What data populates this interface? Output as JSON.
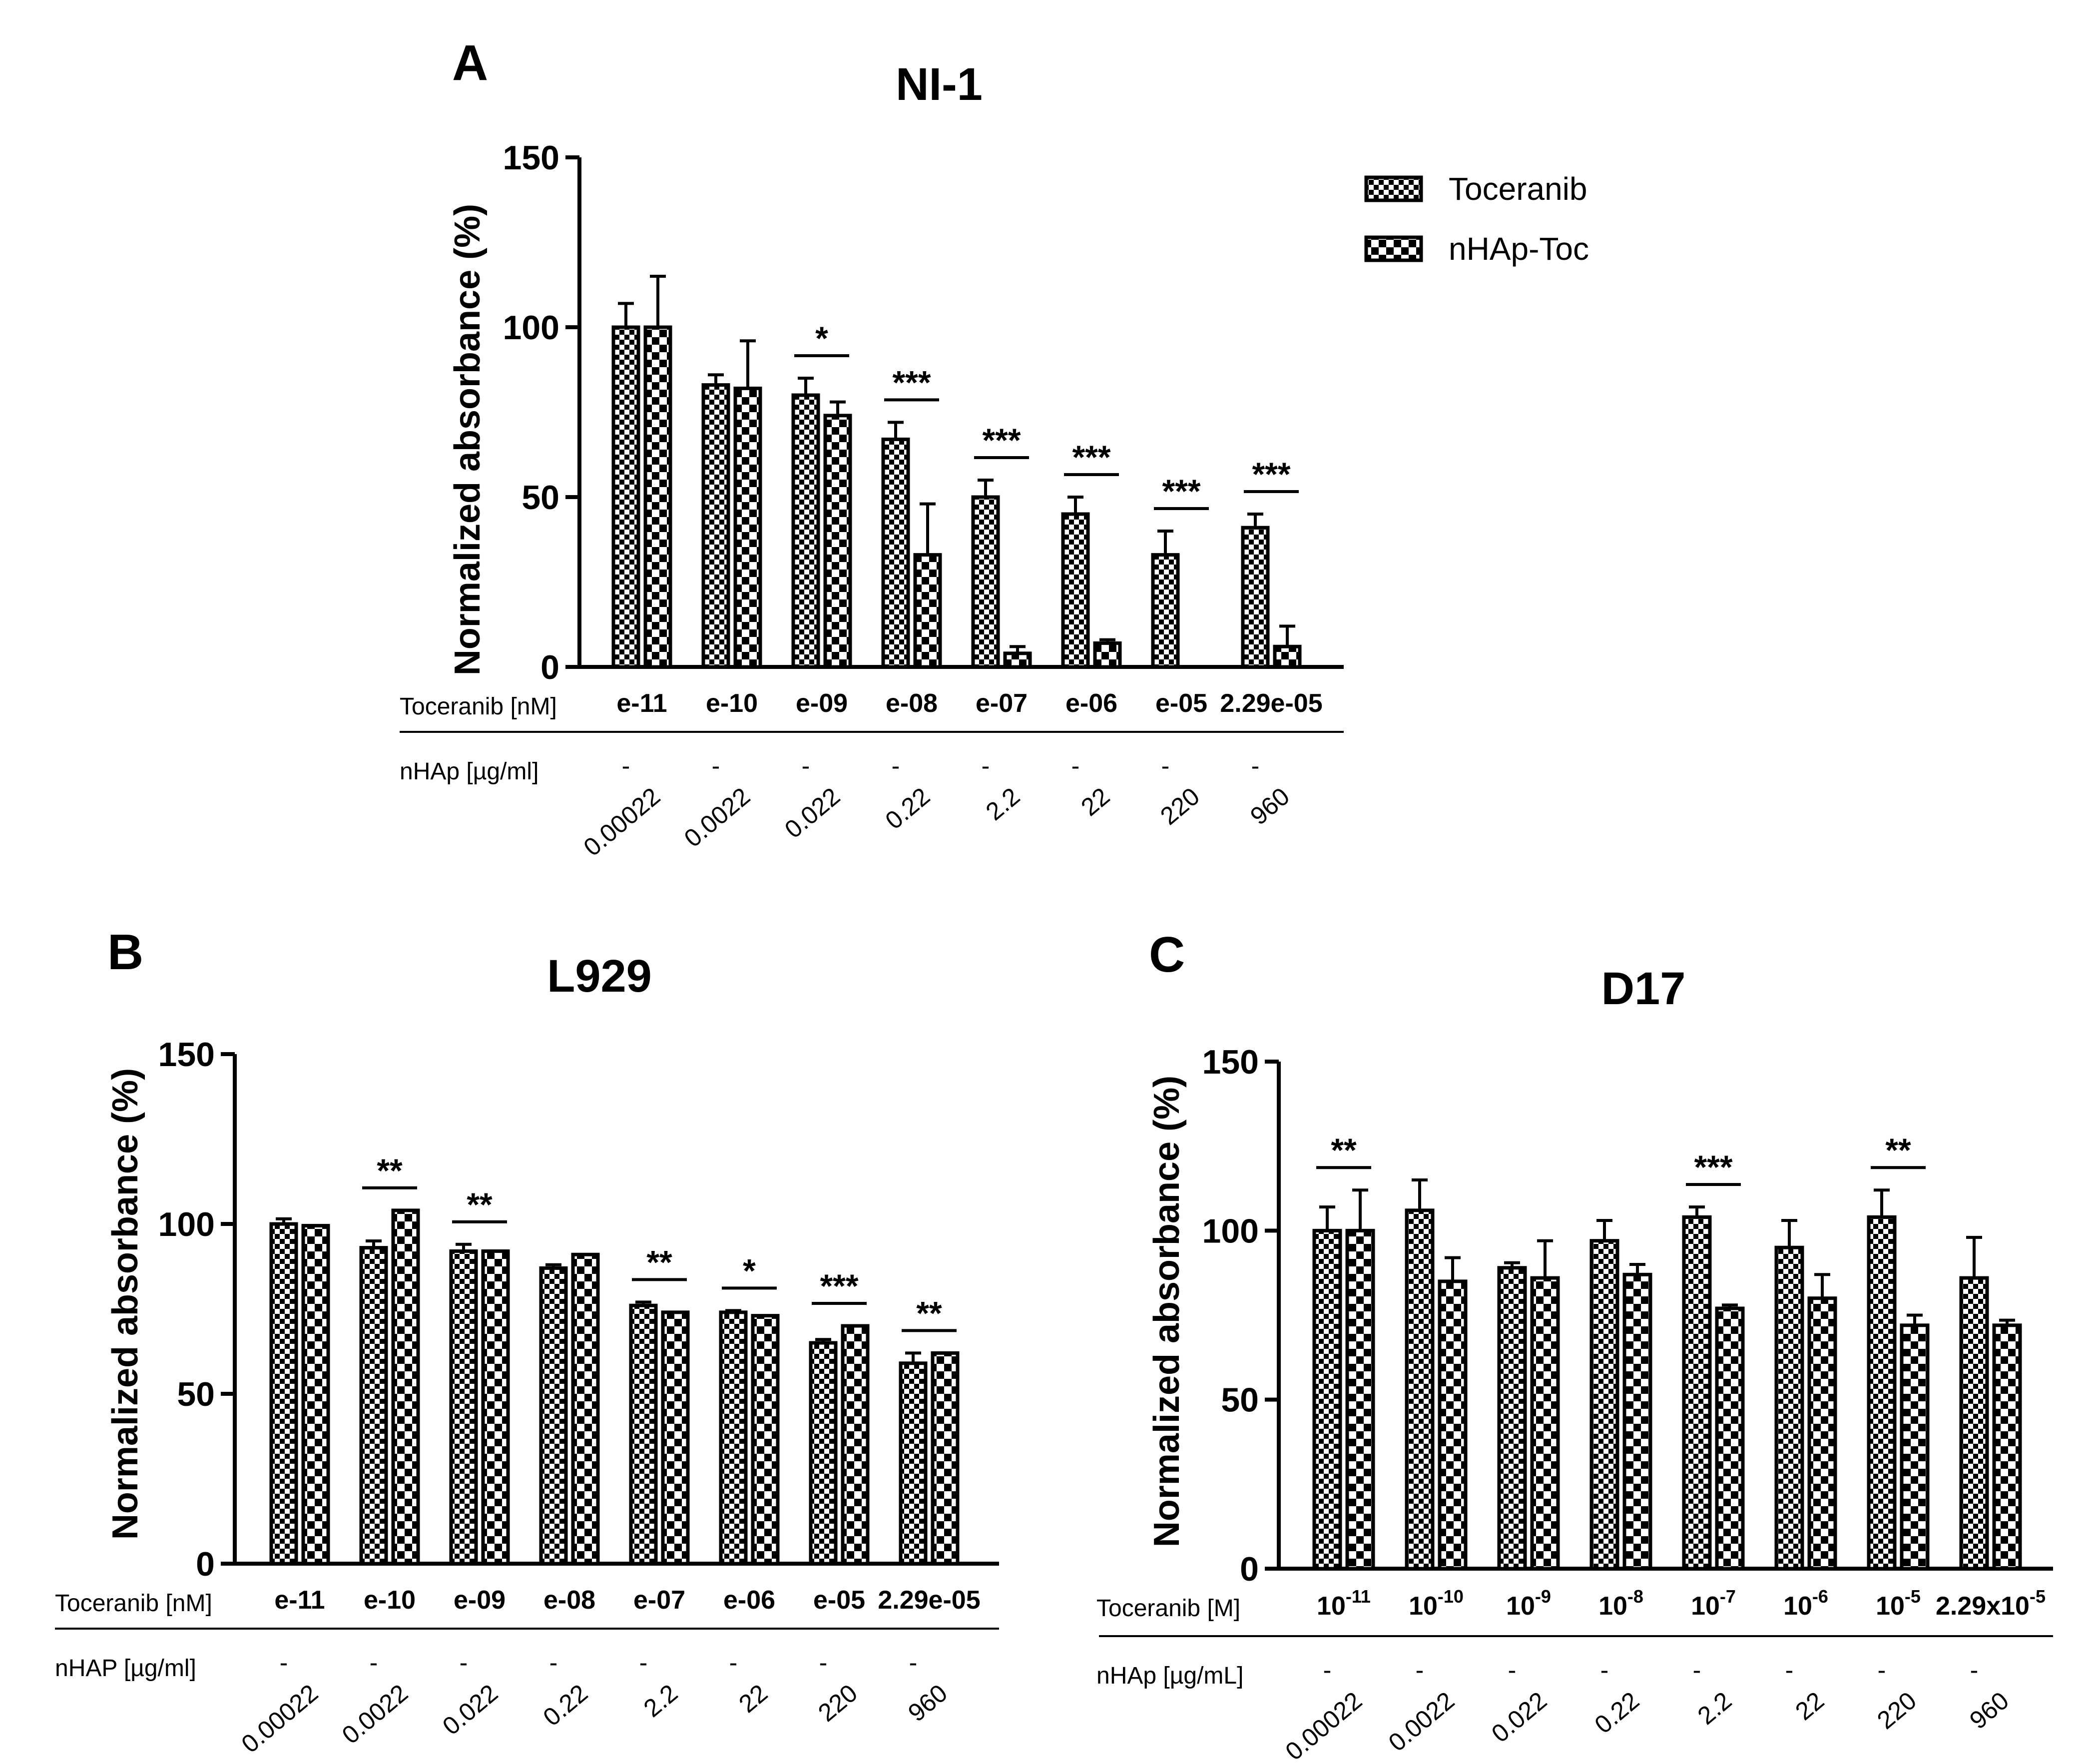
{
  "legend": {
    "entries": [
      {
        "label": "Toceranib",
        "pattern": "checker"
      },
      {
        "label": "nHAp-Toc",
        "pattern": "block"
      }
    ]
  },
  "colors": {
    "ink": "#000000",
    "background": "#ffffff"
  },
  "chart_data": [
    {
      "type": "bar",
      "panel": "A",
      "title": "NI-1",
      "ylabel": "Normalized absorbance (%)",
      "ylim": [
        0,
        150
      ],
      "yticks": [
        "0",
        "50",
        "100",
        "150"
      ],
      "row1_label": "Toceranib [nM]",
      "row2_label": "nHAp [µg/ml]",
      "categories": [
        "e-11",
        "e-10",
        "e-09",
        "e-08",
        "e-07",
        "e-06",
        "e-05",
        "2.29e-05"
      ],
      "categories_sup": [
        "",
        "",
        "",
        "",
        "",
        "",
        "",
        ""
      ],
      "toc_dash": [
        "-",
        "-",
        "-",
        "-",
        "-",
        "-",
        "-",
        "-"
      ],
      "nhap_values": [
        "0.00022",
        "0.0022",
        "0.022",
        "0.22",
        "2.2",
        "22",
        "220",
        "960"
      ],
      "series": [
        {
          "name": "Toceranib",
          "values": [
            100,
            83,
            80,
            67,
            50,
            45,
            33,
            41
          ],
          "errors": [
            7,
            3,
            5,
            5,
            5,
            5,
            7,
            4
          ]
        },
        {
          "name": "nHAp-Toc",
          "values": [
            100,
            82,
            74,
            33,
            4,
            7,
            0,
            6
          ],
          "errors": [
            15,
            14,
            4,
            15,
            2,
            1,
            0,
            6
          ]
        }
      ],
      "significance": [
        "",
        "",
        "*",
        "***",
        "***",
        "***",
        "***",
        "***"
      ],
      "grid": false
    },
    {
      "type": "bar",
      "panel": "B",
      "title": "L929",
      "ylabel": "Normalized absorbance (%)",
      "ylim": [
        0,
        150
      ],
      "yticks": [
        "0",
        "50",
        "100",
        "150"
      ],
      "row1_label": "Toceranib [nM]",
      "row2_label": "nHAP [µg/ml]",
      "categories": [
        "e-11",
        "e-10",
        "e-09",
        "e-08",
        "e-07",
        "e-06",
        "e-05",
        "2.29e-05"
      ],
      "categories_sup": [
        "",
        "",
        "",
        "",
        "",
        "",
        "",
        ""
      ],
      "toc_dash": [
        "-",
        "-",
        "-",
        "-",
        "-",
        "-",
        "-",
        "-"
      ],
      "nhap_values": [
        "0.00022",
        "0.0022",
        "0.022",
        "0.22",
        "2.2",
        "22",
        "220",
        "960"
      ],
      "series": [
        {
          "name": "Toceranib",
          "values": [
            100,
            93,
            92,
            87,
            76,
            74,
            65,
            59
          ],
          "errors": [
            1.5,
            2,
            2,
            1,
            1,
            0.5,
            1,
            3
          ]
        },
        {
          "name": "nHAp-Toc",
          "values": [
            99.5,
            104,
            92,
            91,
            74,
            73,
            70,
            62
          ],
          "errors": [
            0,
            0,
            0,
            0,
            0,
            0,
            0,
            0
          ]
        }
      ],
      "significance": [
        "",
        "**",
        "**",
        "",
        "**",
        "*",
        "***",
        "**"
      ],
      "grid": false
    },
    {
      "type": "bar",
      "panel": "C",
      "title": "D17",
      "ylabel": "Normalized absorbance (%)",
      "ylim": [
        0,
        150
      ],
      "yticks": [
        "0",
        "50",
        "100",
        "150"
      ],
      "row1_label": "Toceranib [M]",
      "row2_label": "nHAp [µg/mL]",
      "categories": [
        "10",
        "10",
        "10",
        "10",
        "10",
        "10",
        "10",
        "2.29x10"
      ],
      "categories_sup": [
        "-11",
        "-10",
        "-9",
        "-8",
        "-7",
        "-6",
        "-5",
        "-5"
      ],
      "toc_dash": [
        "-",
        "-",
        "-",
        "-",
        "-",
        "-",
        "-",
        "-"
      ],
      "nhap_values": [
        "0.00022",
        "0.0022",
        "0.022",
        "0.22",
        "2.2",
        "22",
        "220",
        "960"
      ],
      "series": [
        {
          "name": "Toceranib",
          "values": [
            100,
            106,
            89,
            97,
            104,
            95,
            104,
            86
          ],
          "errors": [
            7,
            9,
            1.5,
            6,
            3,
            8,
            8,
            12
          ]
        },
        {
          "name": "nHAp-Toc",
          "values": [
            100,
            85,
            86,
            87,
            77,
            80,
            72,
            72
          ],
          "errors": [
            12,
            7,
            11,
            3,
            1,
            7,
            3,
            1.5
          ]
        }
      ],
      "significance": [
        "**",
        "",
        "",
        "",
        "***",
        "",
        "**",
        ""
      ],
      "grid": false
    }
  ]
}
